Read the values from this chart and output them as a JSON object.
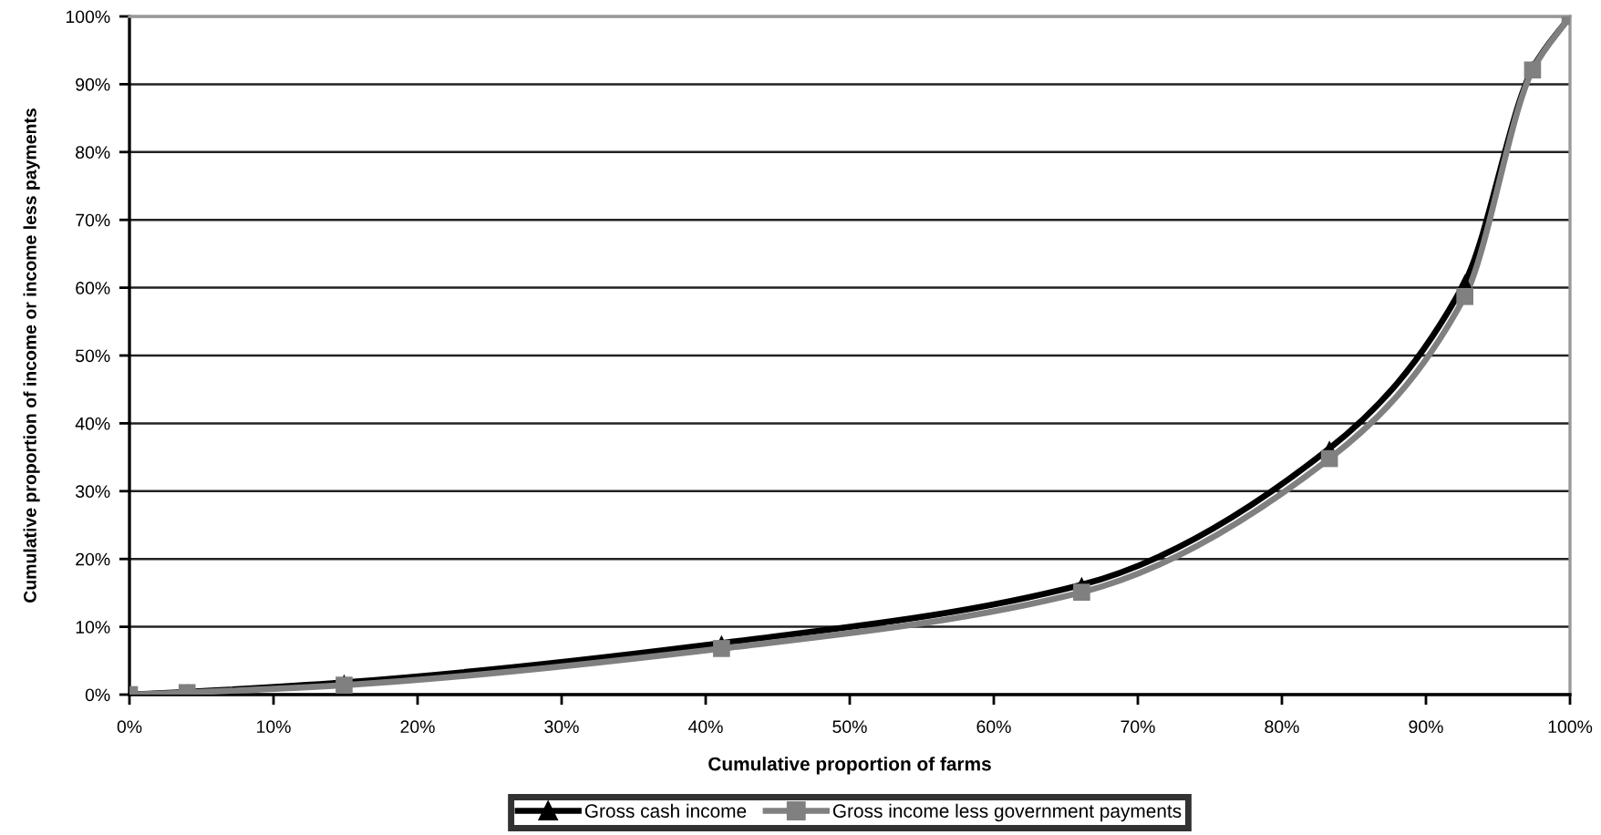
{
  "chart_data": {
    "type": "line",
    "xlabel": "Cumulative proportion of farms",
    "ylabel": "Cumulative proportion of income or income less payments",
    "series": [
      {
        "name": "Gross cash income",
        "color": "#000000",
        "marker": "triangle",
        "x": [
          0,
          4,
          14.9,
          41.1,
          66.1,
          83.3,
          92.7,
          97.4,
          100
        ],
        "values": [
          0,
          0.4,
          1.8,
          7.6,
          16.2,
          36.3,
          60.8,
          92.3,
          100
        ]
      },
      {
        "name": "Gross income less government payments",
        "color": "#808080",
        "marker": "square",
        "x": [
          0,
          4,
          14.9,
          41.1,
          66.1,
          83.3,
          92.7,
          97.4,
          100
        ],
        "values": [
          0,
          0.3,
          1.4,
          6.8,
          15.1,
          34.8,
          58.7,
          92.1,
          100
        ]
      }
    ],
    "xlim": [
      0,
      100
    ],
    "ylim": [
      0,
      100
    ],
    "xticks": [
      {
        "value": 0,
        "label": "0%"
      },
      {
        "value": 10,
        "label": "10%"
      },
      {
        "value": 20,
        "label": "20%"
      },
      {
        "value": 30,
        "label": "30%"
      },
      {
        "value": 40,
        "label": "40%"
      },
      {
        "value": 50,
        "label": "50%"
      },
      {
        "value": 60,
        "label": "60%"
      },
      {
        "value": 70,
        "label": "70%"
      },
      {
        "value": 80,
        "label": "80%"
      },
      {
        "value": 90,
        "label": "90%"
      },
      {
        "value": 100,
        "label": "100%"
      }
    ],
    "yticks": [
      {
        "value": 0,
        "label": "0%"
      },
      {
        "value": 10,
        "label": "10%"
      },
      {
        "value": 20,
        "label": "20%"
      },
      {
        "value": 30,
        "label": "30%"
      },
      {
        "value": 40,
        "label": "40%"
      },
      {
        "value": 50,
        "label": "50%"
      },
      {
        "value": 60,
        "label": "60%"
      },
      {
        "value": 70,
        "label": "70%"
      },
      {
        "value": 80,
        "label": "80%"
      },
      {
        "value": 90,
        "label": "90%"
      },
      {
        "value": 100,
        "label": "100%"
      }
    ],
    "grid": "y",
    "legend": "bottom",
    "line_style": "solid"
  }
}
